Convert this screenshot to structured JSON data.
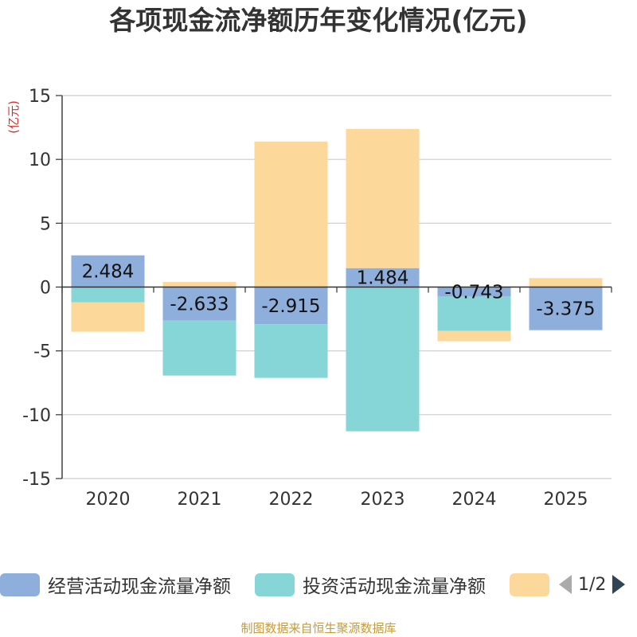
{
  "chart_data": {
    "type": "bar",
    "stacked": true,
    "title": "各项现金流净额历年变化情况(亿元)",
    "ylabel": "(亿元)",
    "xlabel": "",
    "categories": [
      "2020",
      "2021",
      "2022",
      "2023",
      "2024",
      "2025"
    ],
    "ylim": [
      -15,
      15
    ],
    "yticks": [
      15,
      10,
      5,
      0,
      -5,
      -10,
      -15
    ],
    "series": [
      {
        "name": "经营活动现金流量净额",
        "color": "#8eaedb",
        "values": [
          2.484,
          -2.633,
          -2.915,
          1.484,
          -0.743,
          -3.375
        ],
        "labels": [
          "2.484",
          "-2.633",
          "-2.915",
          "1.484",
          "-0.743",
          "-3.375"
        ]
      },
      {
        "name": "投资活动现金流量净额",
        "color": "#86d6d8",
        "values": [
          -1.2,
          -4.3,
          -4.2,
          -11.3,
          -2.7,
          0
        ]
      },
      {
        "name": "",
        "color": "#fdd89b",
        "values": [
          -2.3,
          0.4,
          11.4,
          10.9,
          -0.8,
          0.7
        ]
      }
    ],
    "legend_position": "bottom"
  },
  "legend": {
    "page": "1/2"
  },
  "source": "制图数据来自恒生聚源数据库"
}
